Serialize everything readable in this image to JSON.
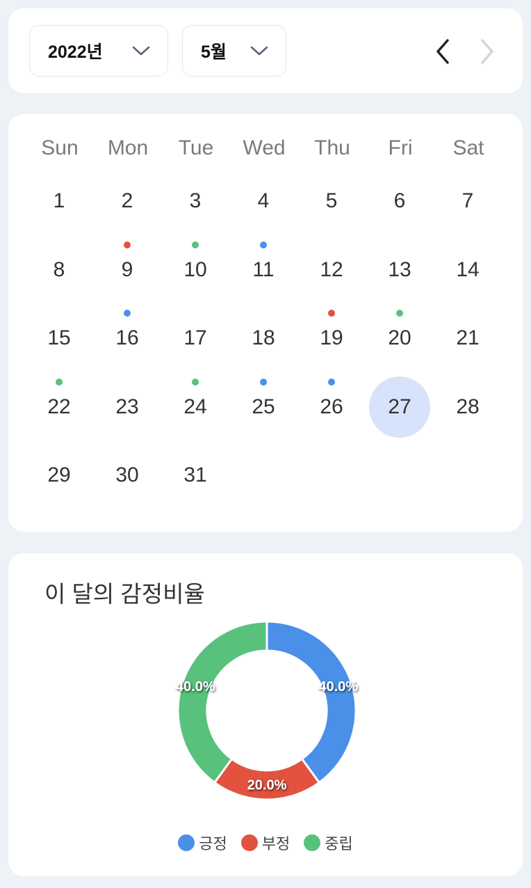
{
  "header": {
    "year_label": "2022년",
    "month_label": "5월",
    "prev_icon": "chevron-left-icon",
    "next_icon": "chevron-right-icon",
    "next_disabled": true
  },
  "calendar": {
    "weekdays": [
      "Sun",
      "Mon",
      "Tue",
      "Wed",
      "Thu",
      "Fri",
      "Sat"
    ],
    "first_weekday_index": 0,
    "days_in_month": 31,
    "today": 27,
    "today_color": "#d6e3fb",
    "dots": {
      "9": "negative",
      "10": "neutral",
      "11": "positive",
      "16": "positive",
      "19": "negative",
      "20": "neutral",
      "22": "neutral",
      "24": "neutral",
      "25": "positive",
      "26": "positive"
    }
  },
  "colors": {
    "positive": "#4a90e8",
    "negative": "#e2523f",
    "neutral": "#58c27d"
  },
  "chart": {
    "title": "이 달의 감정비율"
  },
  "chart_data": {
    "type": "pie",
    "donut": true,
    "categories": [
      "긍정",
      "부정",
      "중립"
    ],
    "values": [
      40.0,
      20.0,
      40.0
    ],
    "value_labels": [
      "40.0%",
      "20.0%",
      "40.0%"
    ],
    "colors": [
      "#4a90e8",
      "#e2523f",
      "#58c27d"
    ],
    "legend": "bottom"
  }
}
